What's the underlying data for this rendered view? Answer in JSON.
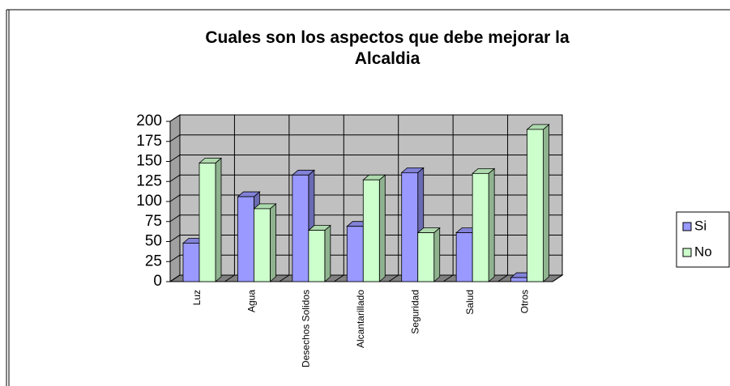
{
  "chart_data": {
    "type": "bar3d",
    "title": "Cuales son los aspectos que debe mejorar la Alcaldia",
    "categories": [
      "Luz",
      "Agua",
      "Desechos Solidos",
      "Alcantarillado",
      "Seguridad",
      "Salud",
      "Otros"
    ],
    "series": [
      {
        "name": "Si",
        "color": "#9999ff",
        "values": [
          48,
          106,
          133,
          69,
          136,
          61,
          5
        ]
      },
      {
        "name": "No",
        "color": "#ccffcc",
        "values": [
          148,
          91,
          64,
          127,
          61,
          135,
          190
        ]
      }
    ],
    "ylim": [
      0,
      200
    ],
    "yticks": [
      0,
      25,
      50,
      75,
      100,
      125,
      150,
      175,
      200
    ],
    "grid": true,
    "legend": "right"
  }
}
